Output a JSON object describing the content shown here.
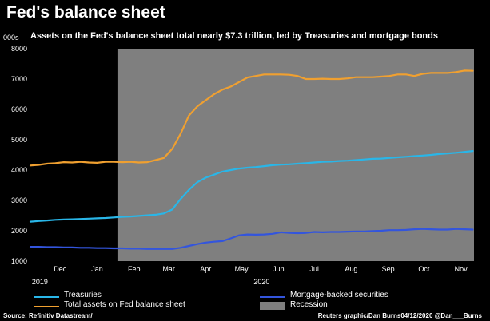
{
  "title": "Fed's balance sheet",
  "subtitle": "Assets on the Fed's balance sheet total nearly $7.3 trillion, led by Treasuries and mortgage bonds",
  "units": "000s",
  "colors": {
    "treasuries": "#29b6e8",
    "total": "#f0a030",
    "mbs": "#3355dd",
    "recession": "#7f7f7f",
    "background": "#000000"
  },
  "legend": {
    "treasuries": "Treasuries",
    "total": "Total assets on Fed balance sheet",
    "mbs": "Mortgage-backed securities",
    "recession": "Recession"
  },
  "footer": {
    "source": "Source: Refinitiv Datastream/",
    "credit": "Reuters graphic/Dan Burns04/12/2020 @Dan___Burns"
  },
  "chart_data": {
    "type": "line",
    "title": "Fed's balance sheet",
    "subtitle": "Assets on the Fed's balance sheet total nearly $7.3 trillion, led by Treasuries and mortgage bonds",
    "ylabel": "000s",
    "ylim": [
      1000,
      8000
    ],
    "yticks": [
      "1000",
      "2000",
      "3000",
      "4000",
      "5000",
      "6000",
      "7000",
      "8000"
    ],
    "xlim": [
      "2019-11-20",
      "2020-11-26"
    ],
    "xticks": [
      {
        "label": "Dec",
        "date": "2019-12-01"
      },
      {
        "label": "Jan",
        "date": "2020-01-01"
      },
      {
        "label": "Feb",
        "date": "2020-02-01"
      },
      {
        "label": "Mar",
        "date": "2020-03-01"
      },
      {
        "label": "Apr",
        "date": "2020-04-01"
      },
      {
        "label": "May",
        "date": "2020-05-01"
      },
      {
        "label": "Jun",
        "date": "2020-06-01"
      },
      {
        "label": "Jul",
        "date": "2020-07-01"
      },
      {
        "label": "Aug",
        "date": "2020-08-01"
      },
      {
        "label": "Sep",
        "date": "2020-09-01"
      },
      {
        "label": "Oct",
        "date": "2020-10-01"
      },
      {
        "label": "Nov",
        "date": "2020-11-01"
      }
    ],
    "year_labels": [
      {
        "label": "2019",
        "date": "2019-11-28"
      },
      {
        "label": "2020",
        "date": "2020-06-01"
      }
    ],
    "recession": {
      "start": "2020-02-01",
      "end": "2020-11-26"
    },
    "grid": false,
    "legend_position": "bottom",
    "series": [
      {
        "name": "Total assets on Fed balance sheet",
        "key": "total",
        "dates": [
          "2019-11-20",
          "2019-11-27",
          "2019-12-04",
          "2019-12-11",
          "2019-12-18",
          "2019-12-25",
          "2020-01-01",
          "2020-01-08",
          "2020-01-15",
          "2020-01-22",
          "2020-01-29",
          "2020-02-05",
          "2020-02-12",
          "2020-02-19",
          "2020-02-26",
          "2020-03-04",
          "2020-03-11",
          "2020-03-18",
          "2020-03-25",
          "2020-04-01",
          "2020-04-08",
          "2020-04-15",
          "2020-04-22",
          "2020-04-29",
          "2020-05-06",
          "2020-05-13",
          "2020-05-20",
          "2020-05-27",
          "2020-06-03",
          "2020-06-10",
          "2020-06-17",
          "2020-06-24",
          "2020-07-01",
          "2020-07-08",
          "2020-07-15",
          "2020-07-22",
          "2020-07-29",
          "2020-08-05",
          "2020-08-12",
          "2020-08-19",
          "2020-08-26",
          "2020-09-02",
          "2020-09-09",
          "2020-09-16",
          "2020-09-23",
          "2020-09-30",
          "2020-10-07",
          "2020-10-14",
          "2020-10-21",
          "2020-10-28",
          "2020-11-04",
          "2020-11-11",
          "2020-11-18",
          "2020-11-25"
        ],
        "values": [
          4150,
          4170,
          4210,
          4230,
          4260,
          4250,
          4270,
          4250,
          4240,
          4270,
          4270,
          4260,
          4270,
          4250,
          4260,
          4330,
          4400,
          4700,
          5200,
          5800,
          6100,
          6300,
          6500,
          6650,
          6750,
          6900,
          7050,
          7100,
          7150,
          7150,
          7150,
          7140,
          7100,
          7000,
          7000,
          7010,
          7000,
          7000,
          7020,
          7060,
          7060,
          7060,
          7080,
          7100,
          7150,
          7150,
          7100,
          7170,
          7200,
          7200,
          7200,
          7230,
          7280,
          7270
        ]
      },
      {
        "name": "Treasuries",
        "key": "treasuries",
        "dates": [
          "2019-11-20",
          "2019-11-27",
          "2019-12-04",
          "2019-12-11",
          "2019-12-18",
          "2019-12-25",
          "2020-01-01",
          "2020-01-08",
          "2020-01-15",
          "2020-01-22",
          "2020-01-29",
          "2020-02-05",
          "2020-02-12",
          "2020-02-19",
          "2020-02-26",
          "2020-03-04",
          "2020-03-11",
          "2020-03-18",
          "2020-03-25",
          "2020-04-01",
          "2020-04-08",
          "2020-04-15",
          "2020-04-22",
          "2020-04-29",
          "2020-05-06",
          "2020-05-13",
          "2020-05-20",
          "2020-05-27",
          "2020-06-03",
          "2020-06-10",
          "2020-06-17",
          "2020-06-24",
          "2020-07-01",
          "2020-07-08",
          "2020-07-15",
          "2020-07-22",
          "2020-07-29",
          "2020-08-05",
          "2020-08-12",
          "2020-08-19",
          "2020-08-26",
          "2020-09-02",
          "2020-09-09",
          "2020-09-16",
          "2020-09-23",
          "2020-09-30",
          "2020-10-07",
          "2020-10-14",
          "2020-10-21",
          "2020-10-28",
          "2020-11-04",
          "2020-11-11",
          "2020-11-18",
          "2020-11-25"
        ],
        "values": [
          2300,
          2320,
          2340,
          2360,
          2370,
          2380,
          2390,
          2400,
          2410,
          2420,
          2440,
          2460,
          2470,
          2490,
          2510,
          2530,
          2570,
          2700,
          3050,
          3350,
          3600,
          3750,
          3850,
          3950,
          4000,
          4050,
          4080,
          4100,
          4130,
          4160,
          4180,
          4190,
          4210,
          4230,
          4250,
          4270,
          4280,
          4300,
          4310,
          4330,
          4350,
          4370,
          4380,
          4400,
          4420,
          4440,
          4460,
          4480,
          4500,
          4530,
          4550,
          4570,
          4600,
          4630
        ]
      },
      {
        "name": "Mortgage-backed securities",
        "key": "mbs",
        "dates": [
          "2019-11-20",
          "2019-11-27",
          "2019-12-04",
          "2019-12-11",
          "2019-12-18",
          "2019-12-25",
          "2020-01-01",
          "2020-01-08",
          "2020-01-15",
          "2020-01-22",
          "2020-01-29",
          "2020-02-05",
          "2020-02-12",
          "2020-02-19",
          "2020-02-26",
          "2020-03-04",
          "2020-03-11",
          "2020-03-18",
          "2020-03-25",
          "2020-04-01",
          "2020-04-08",
          "2020-04-15",
          "2020-04-22",
          "2020-04-29",
          "2020-05-06",
          "2020-05-13",
          "2020-05-20",
          "2020-05-27",
          "2020-06-03",
          "2020-06-10",
          "2020-06-17",
          "2020-06-24",
          "2020-07-01",
          "2020-07-08",
          "2020-07-15",
          "2020-07-22",
          "2020-07-29",
          "2020-08-05",
          "2020-08-12",
          "2020-08-19",
          "2020-08-26",
          "2020-09-02",
          "2020-09-09",
          "2020-09-16",
          "2020-09-23",
          "2020-09-30",
          "2020-10-07",
          "2020-10-14",
          "2020-10-21",
          "2020-10-28",
          "2020-11-04",
          "2020-11-11",
          "2020-11-18",
          "2020-11-25"
        ],
        "values": [
          1470,
          1470,
          1460,
          1460,
          1450,
          1450,
          1440,
          1440,
          1430,
          1430,
          1420,
          1420,
          1410,
          1410,
          1400,
          1400,
          1400,
          1400,
          1440,
          1500,
          1560,
          1610,
          1640,
          1660,
          1750,
          1850,
          1880,
          1870,
          1880,
          1900,
          1950,
          1930,
          1920,
          1930,
          1960,
          1950,
          1960,
          1960,
          1970,
          1980,
          1980,
          1990,
          2000,
          2020,
          2020,
          2030,
          2050,
          2060,
          2050,
          2040,
          2040,
          2060,
          2050,
          2040
        ]
      }
    ]
  }
}
